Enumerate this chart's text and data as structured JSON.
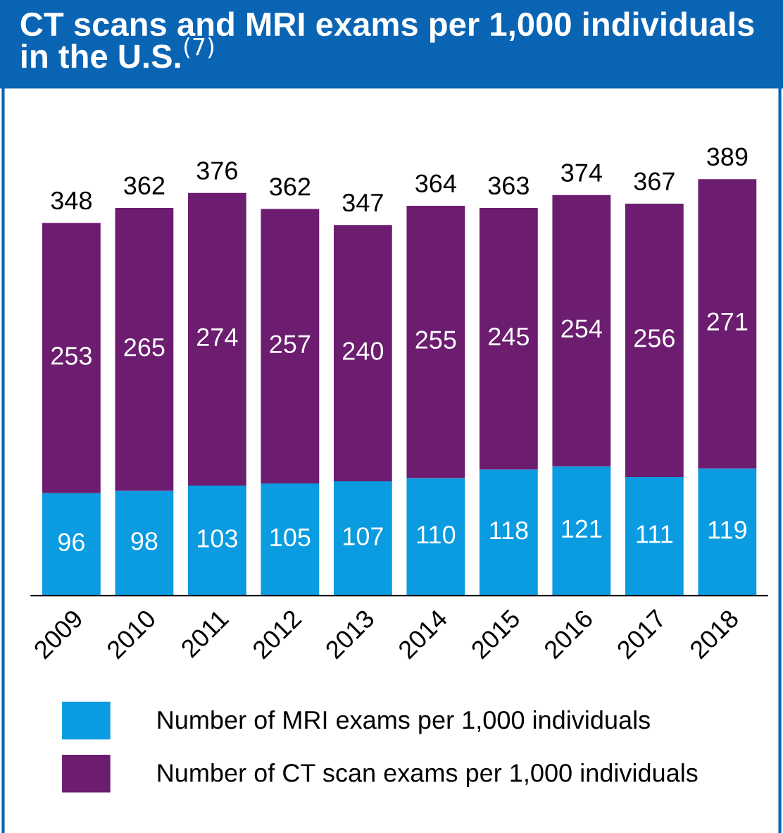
{
  "chart_data": {
    "type": "bar",
    "title": "CT scans and MRI exams per 1,000 individuals in the U.S.$^{(7)}$",
    "categories": [
      "2009",
      "2010",
      "2011",
      "2012",
      "2013",
      "2014",
      "2015",
      "2016",
      "2017",
      "2018"
    ],
    "stacked": true,
    "data_labels": true,
    "legend": "bottom",
    "grid": false,
    "series": [
      {
        "name": "Number of MRI exams per 1,000 individuals",
        "color": "#0a9be0",
        "values": [
          96,
          98,
          103,
          105,
          107,
          110,
          118,
          121,
          111,
          119
        ]
      },
      {
        "name": "Number of CT scan exams per 1,000 individuals",
        "color": "#6c1d70",
        "values": [
          253,
          265,
          274,
          257,
          240,
          255,
          245,
          254,
          256,
          271
        ]
      }
    ],
    "totals": [
      "348",
      "362",
      "376",
      "362",
      "347",
      "364",
      "363",
      "374",
      "367",
      "389"
    ]
  }
}
